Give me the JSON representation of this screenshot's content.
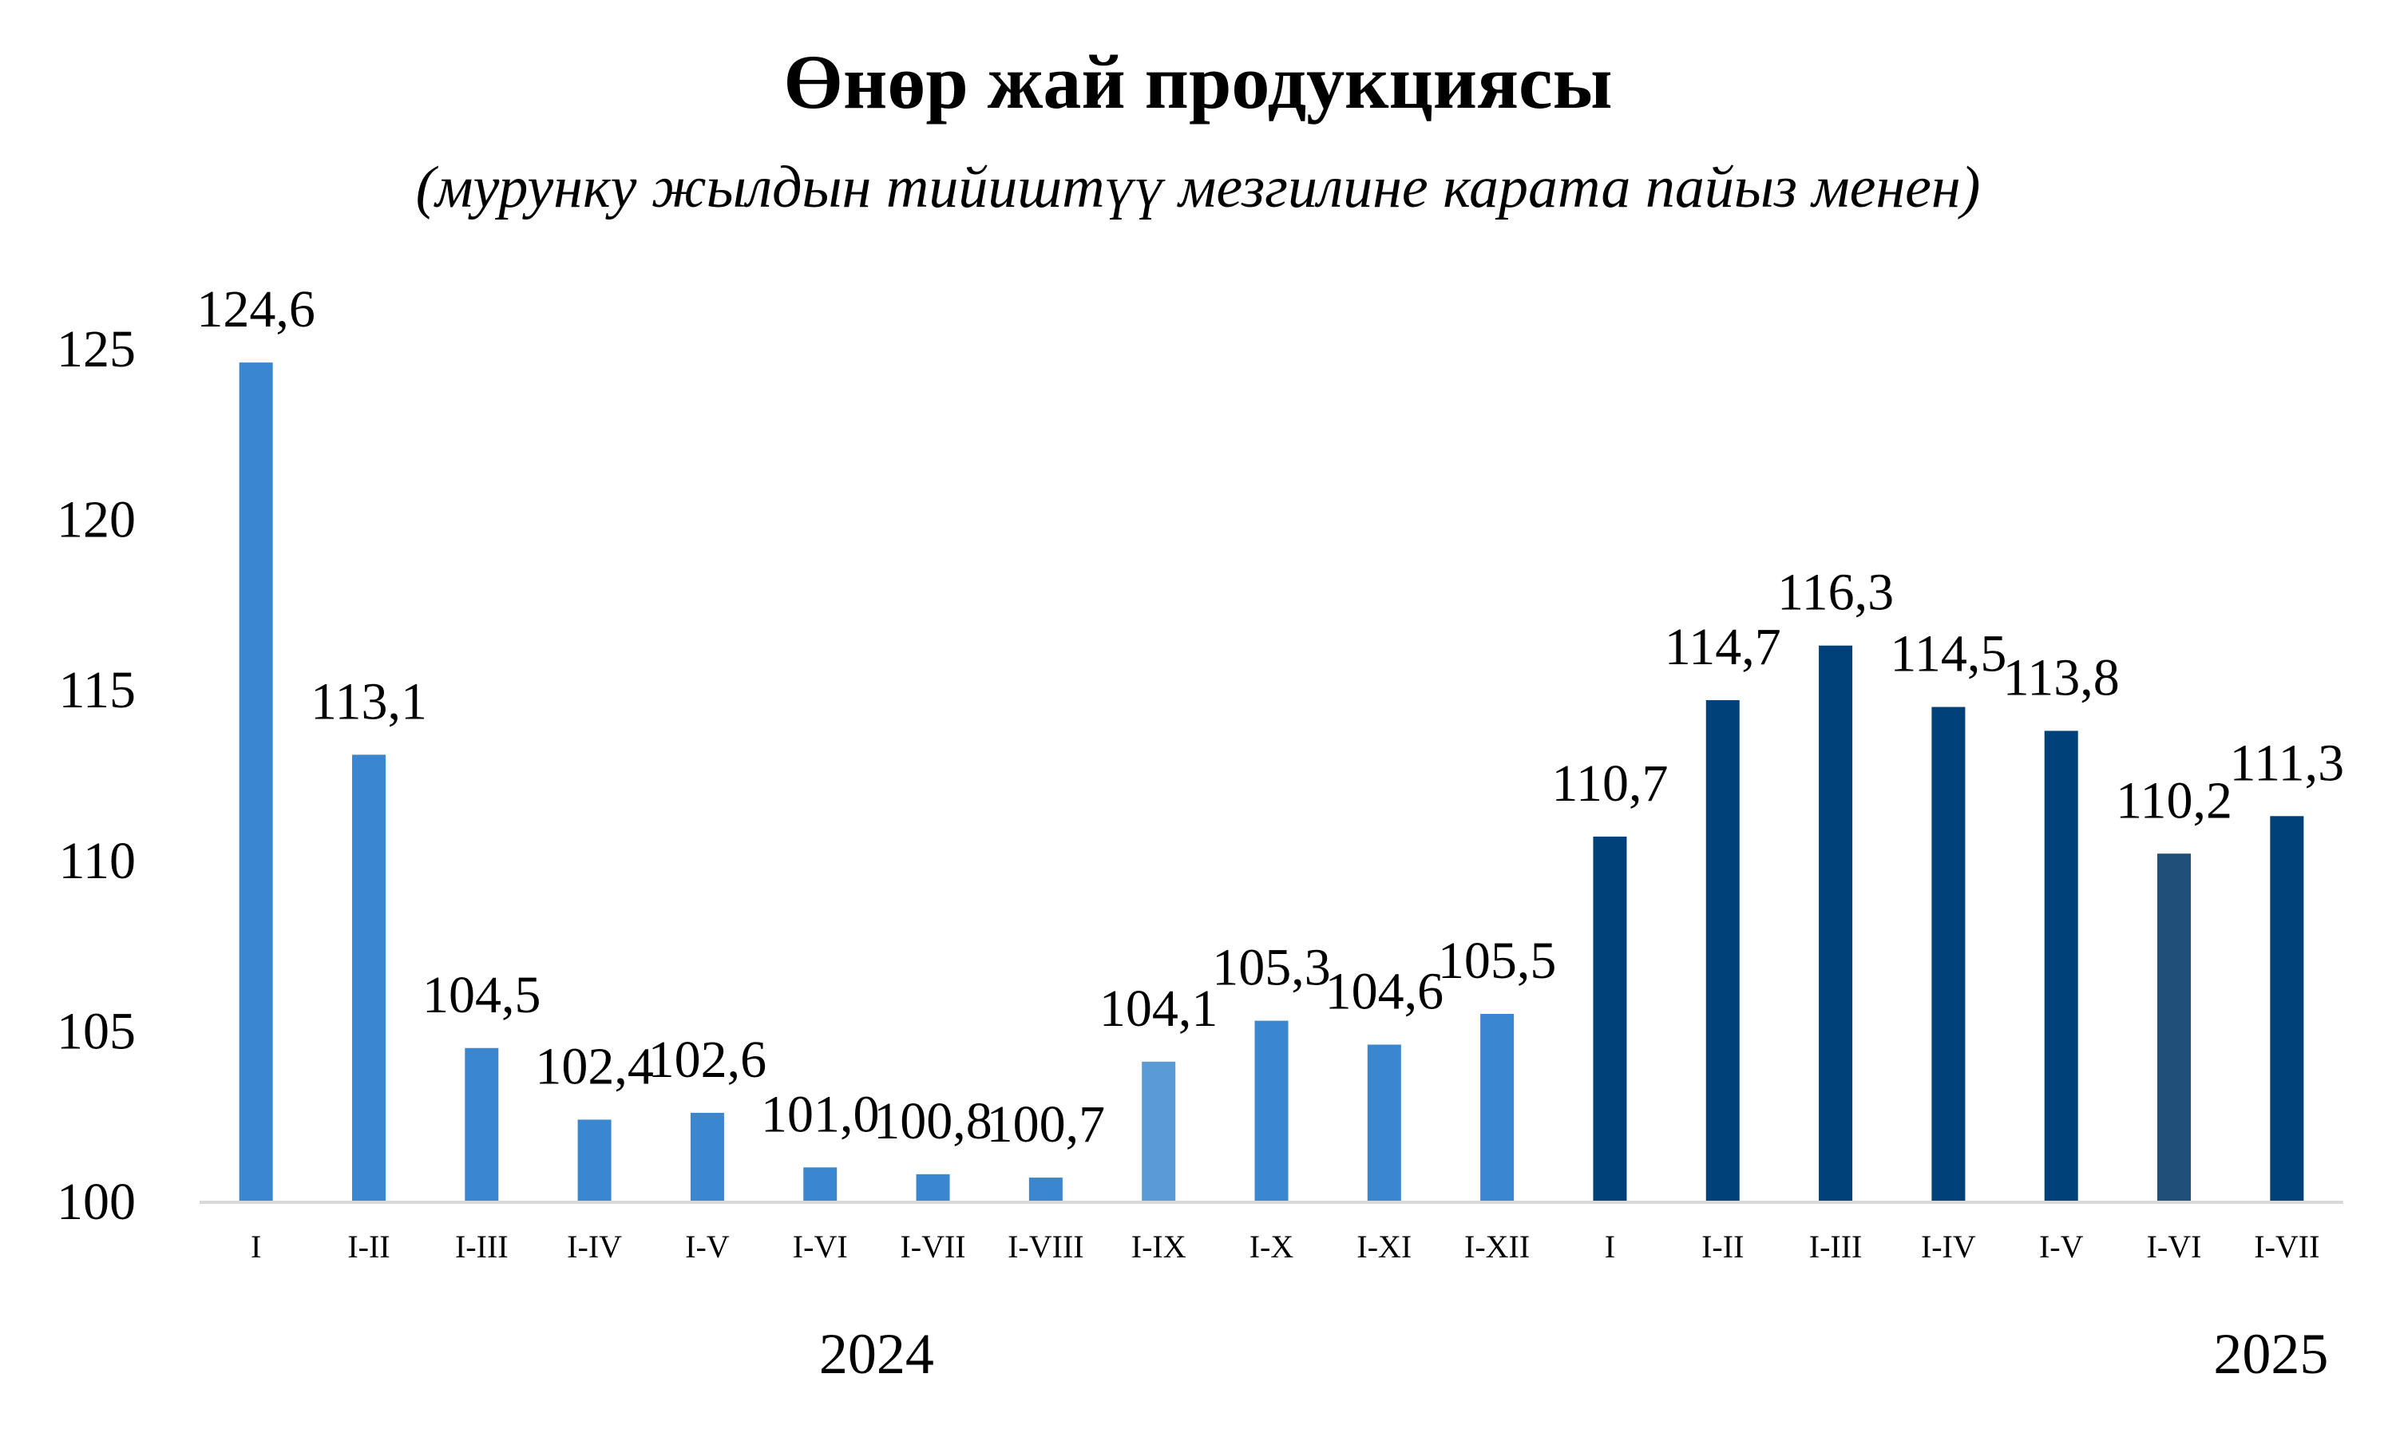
{
  "chart_data": {
    "type": "bar",
    "title": "Өнөр жай продукциясы",
    "subtitle": "(мурунку жылдын тийиштүү  мезгилине карата пайыз менен)",
    "ylim": [
      100,
      125
    ],
    "yticks": [
      "100",
      "105",
      "110",
      "115",
      "120",
      "125"
    ],
    "grid": false,
    "legend": "none",
    "categories": [
      "I",
      "I-II",
      "I-III",
      "I-IV",
      "I-V",
      "I-VI",
      "I-VII",
      "I-VIII",
      "I-IX",
      "I-X",
      "I-XI",
      "I-XII",
      "I",
      "I-II",
      "I-III",
      "I-IV",
      "I-V",
      "I-VI",
      "I-VII"
    ],
    "values": [
      124.6,
      113.1,
      104.5,
      102.4,
      102.6,
      101.0,
      100.8,
      100.7,
      104.1,
      105.3,
      104.6,
      105.5,
      110.7,
      114.7,
      116.3,
      114.5,
      113.8,
      110.2,
      111.3
    ],
    "labels": [
      "124,6",
      "113,1",
      "104,5",
      "102,4",
      "102,6",
      "101,0",
      "100,8",
      "100,7",
      "104,1",
      "105,3",
      "104,6",
      "105,5",
      "110,7",
      "114,7",
      "116,3",
      "114,5",
      "113,8",
      "110,2",
      "111,3"
    ],
    "colors": [
      "#3A87D0",
      "#3A87D0",
      "#3A87D0",
      "#3A87D0",
      "#3A87D0",
      "#3A87D0",
      "#3A87D0",
      "#3A87D0",
      "#5B9BD5",
      "#3A87D0",
      "#3A87D0",
      "#3A87D0",
      "#004179",
      "#004179",
      "#004179",
      "#004179",
      "#004179",
      "#1F4E79",
      "#004179"
    ],
    "year_groups": [
      {
        "label": "2024",
        "from": 0,
        "to": 11
      },
      {
        "label": "2025",
        "from": 12,
        "to": 18
      }
    ]
  }
}
